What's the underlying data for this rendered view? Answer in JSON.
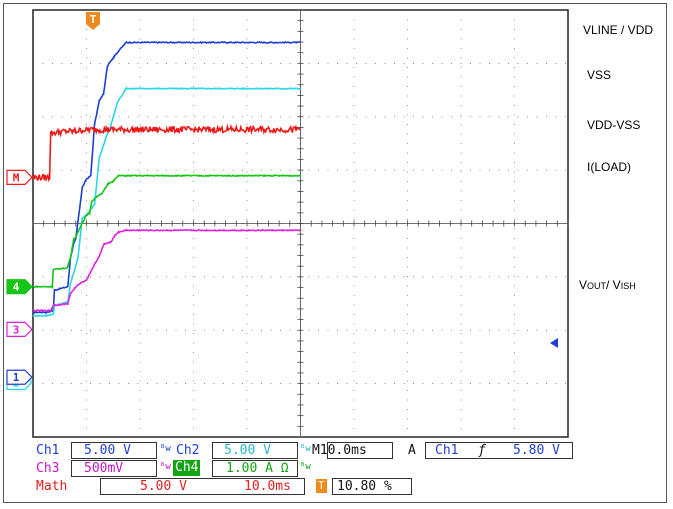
{
  "colors": {
    "ch1": "#1f3fd0",
    "ch2": "#2ad7e6",
    "ch3": "#e020e0",
    "ch4": "#16c516",
    "math": "#ee1a1a",
    "trigger": "#ef8a1e",
    "grid": "#6b6b6b"
  },
  "markers": {
    "trigger": "T",
    "math": "M",
    "ch4": "4",
    "ch3": "3",
    "ch2": "2",
    "ch1": "1"
  },
  "chart_data": {
    "type": "line",
    "title": "",
    "x_unit": "ms",
    "x_per_div": 10,
    "divisions_x": 10,
    "divisions_y": 8,
    "series": [
      {
        "key": "ch1",
        "name": "VLINE / VDD",
        "points": [
          [
            0,
            7.3
          ],
          [
            2.5,
            7.3
          ],
          [
            3.8,
            7.4
          ],
          [
            4.0,
            8.6
          ],
          [
            6.5,
            8.8
          ],
          [
            7.0,
            10.5
          ],
          [
            7.6,
            11.3
          ],
          [
            8.0,
            11.6
          ],
          [
            9.2,
            14.6
          ],
          [
            10.0,
            15.1
          ],
          [
            10.8,
            15.3
          ],
          [
            11.5,
            18.3
          ],
          [
            12.4,
            19.7
          ],
          [
            13.2,
            20.1
          ],
          [
            13.9,
            21.7
          ],
          [
            14.2,
            21.9
          ],
          [
            15.0,
            22.2
          ],
          [
            16.0,
            22.6
          ],
          [
            17.4,
            23.1
          ],
          [
            50,
            23.1
          ]
        ]
      },
      {
        "key": "ch2",
        "name": "VSS",
        "points": [
          [
            0,
            7.1
          ],
          [
            2.5,
            7.1
          ],
          [
            3.8,
            7.2
          ],
          [
            4.0,
            7.7
          ],
          [
            6.5,
            7.9
          ],
          [
            7.0,
            9.0
          ],
          [
            7.8,
            9.8
          ],
          [
            8.4,
            10.5
          ],
          [
            9.2,
            12.8
          ],
          [
            10.0,
            13.0
          ],
          [
            11.5,
            13.6
          ],
          [
            12.4,
            16.4
          ],
          [
            13.0,
            16.9
          ],
          [
            13.6,
            17.5
          ],
          [
            14.5,
            18.2
          ],
          [
            15.8,
            19.6
          ],
          [
            17.4,
            20.4
          ],
          [
            50,
            20.4
          ]
        ]
      },
      {
        "key": "math",
        "name": "VDD-VSS",
        "points": [
          [
            0,
            15.2
          ],
          [
            3.1,
            15.2
          ],
          [
            3.3,
            17.8
          ],
          [
            6.0,
            17.9
          ],
          [
            8.0,
            17.9
          ],
          [
            10.0,
            18.0
          ],
          [
            14.0,
            18.0
          ],
          [
            50,
            18.0
          ]
        ]
      },
      {
        "key": "ch4",
        "name": "I(LOAD)",
        "points": [
          [
            0,
            8.8
          ],
          [
            3.6,
            8.8
          ],
          [
            3.8,
            9.8
          ],
          [
            6.4,
            9.9
          ],
          [
            7.0,
            10.5
          ],
          [
            7.6,
            11.6
          ],
          [
            8.0,
            11.7
          ],
          [
            9.0,
            12.4
          ],
          [
            10.0,
            13.0
          ],
          [
            10.6,
            13.1
          ],
          [
            11.0,
            13.8
          ],
          [
            12.0,
            14.1
          ],
          [
            13.0,
            14.3
          ],
          [
            14.0,
            14.8
          ],
          [
            15.0,
            15.0
          ],
          [
            16.0,
            15.3
          ],
          [
            17.4,
            15.3
          ],
          [
            50,
            15.3
          ]
        ]
      },
      {
        "key": "ch3",
        "name": "VOUT/ VISH",
        "points": [
          [
            0,
            7.4
          ],
          [
            3.3,
            7.4
          ],
          [
            3.8,
            7.7
          ],
          [
            6.5,
            7.8
          ],
          [
            7.0,
            8.4
          ],
          [
            7.8,
            8.7
          ],
          [
            8.8,
            9.0
          ],
          [
            10.0,
            9.2
          ],
          [
            11.5,
            10.1
          ],
          [
            12.4,
            10.6
          ],
          [
            13.3,
            11.3
          ],
          [
            14.5,
            11.4
          ],
          [
            15.3,
            11.8
          ],
          [
            16.0,
            12.0
          ],
          [
            17.4,
            12.1
          ],
          [
            50,
            12.1
          ]
        ]
      }
    ],
    "labels": {
      "ch1": "VLINE / VDD",
      "ch2": "VSS",
      "math": "VDD-VSS",
      "ch4": "I(LOAD)",
      "ch3_main": "V",
      "ch3_sub1": "OUT",
      "ch3_mid": "/ V",
      "ch3_sub2": "ISH"
    }
  },
  "readouts": {
    "ch1_name": "Ch1",
    "ch1_scale": "5.00 V",
    "ch1_icon": "ᴮw",
    "ch2_name": "Ch2",
    "ch2_scale": "5.00 V",
    "ch2_icon": "ᴮw",
    "timebase": "M10.0ms",
    "trigger_mode": "A",
    "trigger_source": "Ch1",
    "trigger_slope": "ƒ",
    "trigger_level": "5.80 V",
    "ch3_name": "Ch3",
    "ch3_scale": "500mV",
    "ch3_icon": "ᴮw",
    "ch4_name": "Ch4",
    "ch4_scale": "1.00 A Ω",
    "ch4_icon": "ᴮw",
    "math_name": "Math",
    "math_scale": "5.00 V",
    "math_time": "10.0ms",
    "trigger_marker": "T",
    "trigger_pos": "10.80 %"
  }
}
